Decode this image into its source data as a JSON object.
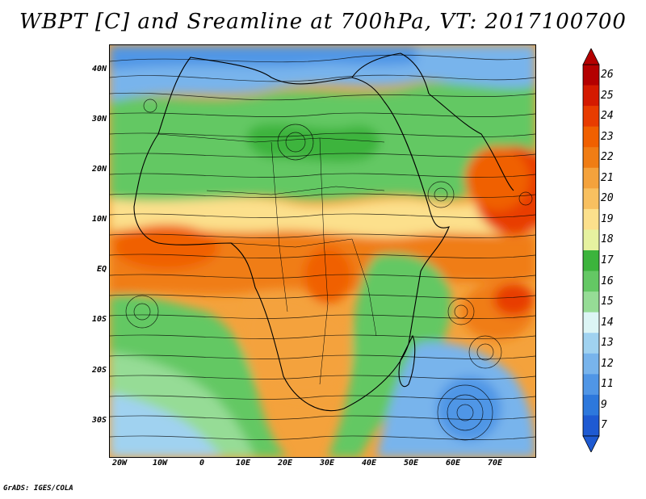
{
  "title": "WBPT [C] and Sreamline at 700hPa, VT: 2017100700",
  "credit": "GrADS: IGES/COLA",
  "map": {
    "lat_labels": [
      "40N",
      "30N",
      "20N",
      "10N",
      "EQ",
      "10S",
      "20S",
      "30S"
    ],
    "lon_labels": [
      "20W",
      "10W",
      "0",
      "10E",
      "20E",
      "30E",
      "40E",
      "50E",
      "60E",
      "70E"
    ],
    "field": "wet-bulb potential temperature",
    "overlay": "streamlines"
  },
  "colorbar": {
    "labels": [
      "26",
      "25",
      "24",
      "23",
      "22",
      "21",
      "20",
      "19",
      "18",
      "17",
      "16",
      "15",
      "14",
      "13",
      "12",
      "11",
      "9",
      "7"
    ],
    "colors": [
      "#b40000",
      "#d41a00",
      "#e83c00",
      "#f06000",
      "#f07d14",
      "#f4a23c",
      "#f8c060",
      "#fce08c",
      "#e6f2a0",
      "#3cb43c",
      "#64c864",
      "#96dc96",
      "#dcf5f5",
      "#a0d2f0",
      "#78b4ec",
      "#5096e6",
      "#2d78dc",
      "#1e5ad2"
    ]
  }
}
